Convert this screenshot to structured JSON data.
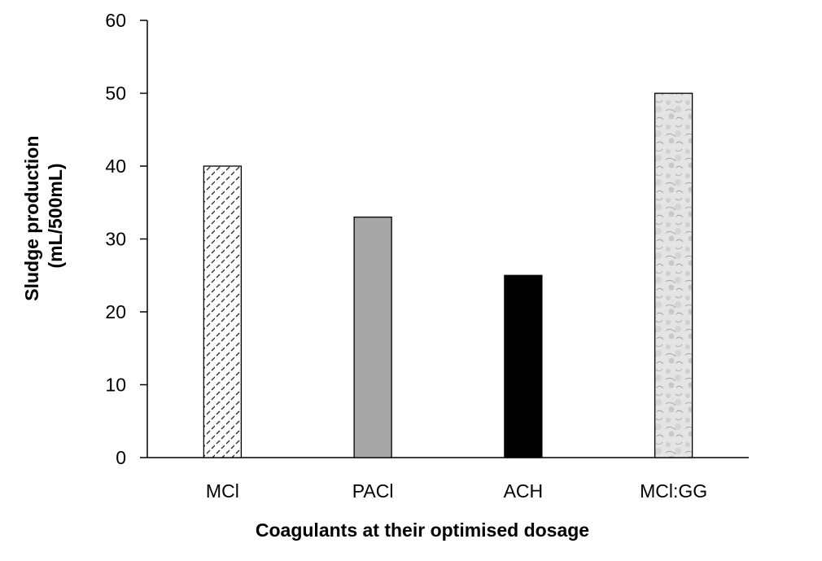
{
  "chart_data": {
    "type": "bar",
    "title": "",
    "xlabel": "Coagulants at their optimised dosage",
    "ylabel_line1": "Sludge production",
    "ylabel_line2": "(mL/500mL)",
    "categories": [
      "MCl",
      "PACl",
      "ACH",
      "MCl:GG"
    ],
    "values": [
      40,
      33,
      25,
      50
    ],
    "ylim": [
      0,
      60
    ],
    "yticks": [
      "0",
      "10",
      "20",
      "30",
      "40",
      "50",
      "60"
    ],
    "grid": false,
    "legend": "none",
    "bar_fills": [
      "pattern-dashes",
      "#a6a6a6",
      "#000000",
      "pattern-mottled"
    ]
  }
}
